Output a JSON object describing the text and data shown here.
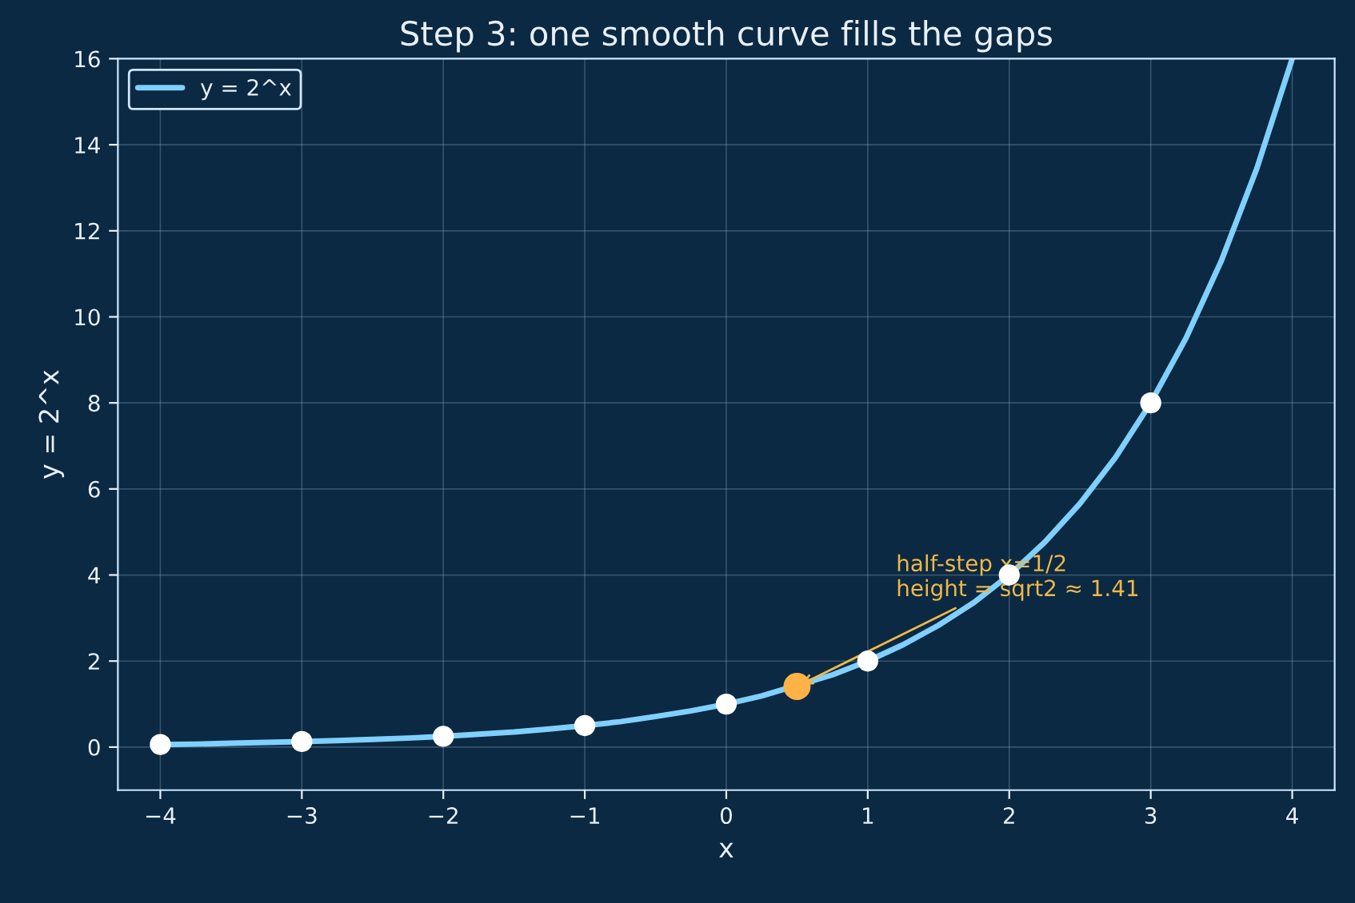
{
  "chart_data": {
    "type": "line",
    "title": "Step 3: one smooth curve fills the gaps",
    "xlabel": "x",
    "ylabel": "y = 2^x",
    "xlim": [
      -4.3,
      4.3
    ],
    "ylim": [
      -1,
      16
    ],
    "xticks": [
      {
        "value": -4,
        "label": "−4"
      },
      {
        "value": -3,
        "label": "−3"
      },
      {
        "value": -2,
        "label": "−2"
      },
      {
        "value": -1,
        "label": "−1"
      },
      0,
      1,
      2,
      3,
      4
    ],
    "yticks": [
      0,
      2,
      4,
      6,
      8,
      10,
      12,
      14,
      16
    ],
    "grid": true,
    "legend": "top left",
    "series": [
      {
        "name": "y = 2^x",
        "color": "#7fd0ff",
        "marker": "none",
        "line_style": "solid",
        "x": [
          -4,
          -3.75,
          -3.5,
          -3.25,
          -3,
          -2.75,
          -2.5,
          -2.25,
          -2,
          -1.75,
          -1.5,
          -1.25,
          -1,
          -0.75,
          -0.5,
          -0.25,
          0,
          0.25,
          0.75,
          1,
          1.25,
          1.5,
          1.75,
          2,
          2.25,
          2.5,
          2.75,
          3,
          3.25,
          3.5,
          3.75,
          4
        ],
        "values": [
          0.06,
          0.07,
          0.09,
          0.11,
          0.13,
          0.15,
          0.18,
          0.21,
          0.25,
          0.3,
          0.35,
          0.42,
          0.5,
          0.59,
          0.71,
          0.84,
          1,
          1.19,
          1.68,
          2,
          2.38,
          2.83,
          3.36,
          4,
          4.76,
          5.66,
          6.73,
          8,
          9.51,
          11.31,
          13.45,
          16
        ]
      },
      {
        "type": "scatter",
        "color": "#ffffff",
        "marker": "circle",
        "x": [
          -4,
          -3,
          -2,
          -1,
          0,
          1,
          2,
          3
        ],
        "values": [
          0.06,
          0.13,
          0.25,
          0.5,
          1,
          2,
          4,
          8
        ]
      },
      {
        "type": "scatter",
        "color": "#ffb347",
        "marker": "circle",
        "x": [
          0.5
        ],
        "values": [
          1.41
        ]
      }
    ],
    "annotations": [
      {
        "text": "half-step x=1/2\nheight = sqrt2 ≈ 1.41",
        "x": 0.5,
        "y": 1.41
      }
    ]
  }
}
